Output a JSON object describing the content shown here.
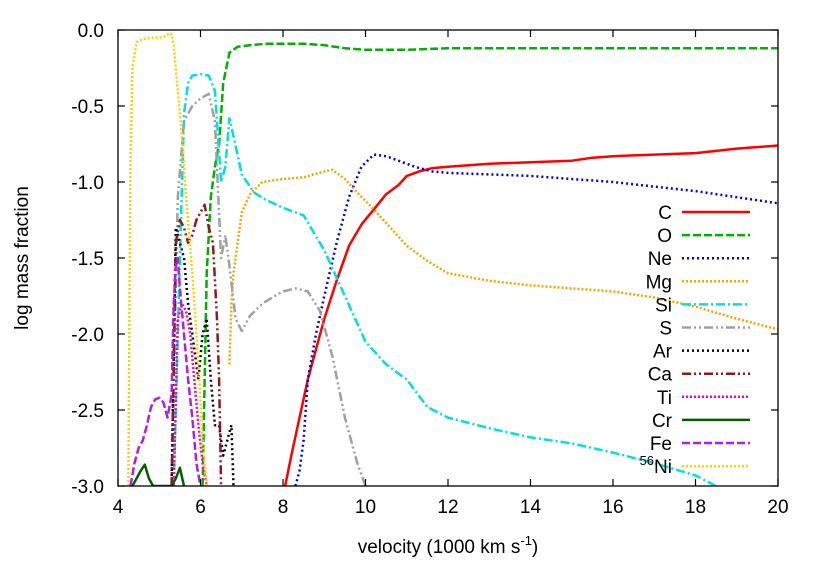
{
  "chart_data": {
    "type": "line",
    "title": "",
    "xlabel": "velocity (1000 km s",
    "xlabel_sup": "-1",
    "xlabel_close": ")",
    "ylabel": "log mass fraction",
    "xlim": [
      4,
      20
    ],
    "ylim": [
      -3.0,
      0.0
    ],
    "x_ticks": [
      4,
      6,
      8,
      10,
      12,
      14,
      16,
      18,
      20
    ],
    "x_tick_labels": [
      "4",
      "6",
      "8",
      "10",
      "12",
      "14",
      "16",
      "18",
      "20"
    ],
    "y_ticks": [
      0.0,
      -0.5,
      -1.0,
      -1.5,
      -2.0,
      -2.5,
      -3.0
    ],
    "y_tick_labels": [
      "0.0",
      "-0.5",
      "-1.0",
      "-1.5",
      "-2.0",
      "-2.5",
      "-3.0"
    ],
    "grid": false,
    "legend_position": "right",
    "series": [
      {
        "name": "C",
        "color": "#ff0000",
        "dash": "solid",
        "width": 2.5,
        "x": [
          8.05,
          8.2,
          8.4,
          8.6,
          8.8,
          9.0,
          9.3,
          9.6,
          9.9,
          10.2,
          10.5,
          10.8,
          11.0,
          11.3,
          11.6,
          12.0,
          12.5,
          13.0,
          14.0,
          15.0,
          15.5,
          16.0,
          17.0,
          18.0,
          19.0,
          20.0
        ],
        "y": [
          -3.0,
          -2.8,
          -2.55,
          -2.3,
          -2.1,
          -1.9,
          -1.65,
          -1.42,
          -1.28,
          -1.18,
          -1.08,
          -1.02,
          -0.96,
          -0.93,
          -0.91,
          -0.9,
          -0.89,
          -0.88,
          -0.87,
          -0.86,
          -0.84,
          -0.83,
          -0.82,
          -0.81,
          -0.78,
          -0.76
        ]
      },
      {
        "name": "O",
        "color": "#00b000",
        "dash": "8,3",
        "width": 2.5,
        "x": [
          6.05,
          6.15,
          6.25,
          6.35,
          6.45,
          6.55,
          6.7,
          6.9,
          7.2,
          7.6,
          8.0,
          8.5,
          9.0,
          9.5,
          10.0,
          11.0,
          12.0,
          13.0,
          14.0,
          15.0,
          16.0,
          17.0,
          18.0,
          19.0,
          20.0
        ],
        "y": [
          -3.0,
          -1.6,
          -1.1,
          -0.9,
          -0.75,
          -0.35,
          -0.15,
          -0.11,
          -0.1,
          -0.09,
          -0.09,
          -0.09,
          -0.1,
          -0.12,
          -0.13,
          -0.13,
          -0.12,
          -0.12,
          -0.12,
          -0.12,
          -0.12,
          -0.12,
          -0.12,
          -0.12,
          -0.12
        ]
      },
      {
        "name": "Ne",
        "color": "#0000dd",
        "dash": "2,3",
        "width": 2.5,
        "x": [
          8.3,
          8.4,
          8.5,
          8.6,
          8.8,
          9.0,
          9.3,
          9.6,
          9.9,
          10.2,
          10.5,
          10.8,
          11.2,
          11.6,
          12.0,
          13.0,
          14.0,
          15.0,
          16.0,
          17.0,
          18.0,
          19.0,
          20.0
        ],
        "y": [
          -3.0,
          -2.9,
          -2.7,
          -2.3,
          -2.0,
          -1.75,
          -1.4,
          -1.1,
          -0.9,
          -0.82,
          -0.83,
          -0.86,
          -0.9,
          -0.93,
          -0.94,
          -0.95,
          -0.96,
          -0.98,
          -1.0,
          -1.03,
          -1.06,
          -1.1,
          -1.14
        ]
      },
      {
        "name": "Mg",
        "color": "#f0a800",
        "dash": "2,2",
        "width": 2.5,
        "x": [
          6.7,
          6.75,
          6.8,
          6.9,
          7.0,
          7.2,
          7.5,
          8.0,
          8.5,
          9.0,
          9.2,
          9.5,
          9.8,
          10.2,
          10.6,
          11.0,
          11.5,
          12.0,
          13.0,
          14.0,
          15.0,
          16.0,
          17.0,
          18.0,
          19.0,
          20.0
        ],
        "y": [
          -2.2,
          -1.8,
          -1.6,
          -1.4,
          -1.2,
          -1.08,
          -1.0,
          -0.98,
          -0.97,
          -0.93,
          -0.92,
          -0.98,
          -1.07,
          -1.18,
          -1.3,
          -1.42,
          -1.52,
          -1.6,
          -1.65,
          -1.68,
          -1.7,
          -1.72,
          -1.76,
          -1.82,
          -1.9,
          -1.97
        ]
      },
      {
        "name": "Si",
        "color": "#00e0e0",
        "dash": "9,3,2,3",
        "width": 2.5,
        "x": [
          5.35,
          5.5,
          5.6,
          5.7,
          5.8,
          6.0,
          6.2,
          6.35,
          6.5,
          6.6,
          6.7,
          6.8,
          7.0,
          7.3,
          7.6,
          8.0,
          8.5,
          9.0,
          9.5,
          10.0,
          10.5,
          11.0,
          11.5,
          12.0,
          13.0,
          14.0,
          15.0,
          16.0,
          17.0,
          18.0,
          18.5
        ],
        "y": [
          -3.0,
          -1.5,
          -0.55,
          -0.35,
          -0.3,
          -0.29,
          -0.3,
          -0.4,
          -1.0,
          -0.9,
          -0.58,
          -0.7,
          -0.95,
          -1.07,
          -1.12,
          -1.17,
          -1.22,
          -1.45,
          -1.75,
          -2.05,
          -2.2,
          -2.3,
          -2.48,
          -2.55,
          -2.62,
          -2.68,
          -2.72,
          -2.78,
          -2.85,
          -2.93,
          -3.0
        ]
      },
      {
        "name": "S",
        "color": "#a0a0a0",
        "dash": "9,3,2,3,2,3",
        "width": 2.5,
        "x": [
          5.3,
          5.45,
          5.6,
          5.8,
          6.0,
          6.2,
          6.35,
          6.5,
          6.6,
          6.7,
          6.85,
          7.0,
          7.2,
          7.5,
          7.8,
          8.0,
          8.3,
          8.6,
          8.9,
          9.2,
          9.5,
          9.8,
          10.0
        ],
        "y": [
          -3.0,
          -1.1,
          -0.6,
          -0.5,
          -0.45,
          -0.42,
          -0.6,
          -1.5,
          -1.35,
          -1.55,
          -1.9,
          -1.98,
          -1.88,
          -1.8,
          -1.75,
          -1.72,
          -1.7,
          -1.72,
          -1.85,
          -2.15,
          -2.55,
          -2.85,
          -3.0
        ]
      },
      {
        "name": "Ar",
        "color": "#000000",
        "dash": "2,3",
        "width": 2.5,
        "x": [
          5.3,
          5.4,
          5.5,
          5.6,
          5.7,
          5.8,
          5.95,
          6.05,
          6.15,
          6.25,
          6.35,
          6.45,
          6.55,
          6.65,
          6.75,
          6.8
        ],
        "y": [
          -3.0,
          -1.3,
          -1.4,
          -1.5,
          -1.8,
          -2.0,
          -2.3,
          -2.0,
          -1.9,
          -2.3,
          -2.6,
          -2.6,
          -2.8,
          -2.7,
          -2.6,
          -3.0
        ]
      },
      {
        "name": "Ca",
        "color": "#8b1a1a",
        "dash": "9,3,2,3,2,3",
        "width": 2.5,
        "x": [
          5.3,
          5.4,
          5.5,
          5.6,
          5.7,
          5.8,
          5.9,
          6.0,
          6.1,
          6.2,
          6.3,
          6.4,
          6.45,
          6.5
        ],
        "y": [
          -3.0,
          -1.4,
          -1.25,
          -1.3,
          -1.4,
          -1.35,
          -1.25,
          -1.2,
          -1.15,
          -1.3,
          -1.4,
          -1.9,
          -2.3,
          -3.0
        ]
      },
      {
        "name": "Ti",
        "color": "#ff00bb",
        "dash": "2,2",
        "width": 2.5,
        "x": [
          5.35,
          5.45,
          5.55,
          5.65,
          5.75,
          5.85,
          5.95,
          6.05,
          6.15
        ],
        "y": [
          -3.0,
          -1.9,
          -1.8,
          -1.85,
          -2.0,
          -2.3,
          -2.6,
          -2.85,
          -3.0
        ]
      },
      {
        "name": "Cr",
        "color": "#006000",
        "dash": "solid",
        "width": 2.5,
        "x": [
          4.35,
          4.45,
          4.55,
          4.65,
          4.75,
          4.85,
          5.3,
          5.4,
          5.5,
          5.6
        ],
        "y": [
          -3.0,
          -2.95,
          -2.9,
          -2.86,
          -2.95,
          -3.0,
          -3.0,
          -2.95,
          -2.88,
          -3.0
        ]
      },
      {
        "name": "Fe",
        "color": "#b020e0",
        "dash": "8,3",
        "width": 2.5,
        "x": [
          4.3,
          4.4,
          4.5,
          4.6,
          4.7,
          4.8,
          4.9,
          5.0,
          5.1,
          5.2,
          5.3,
          5.35,
          5.4,
          5.45,
          5.5,
          5.6,
          5.7,
          5.8,
          5.9,
          6.0
        ],
        "y": [
          -3.0,
          -2.85,
          -2.75,
          -2.7,
          -2.6,
          -2.48,
          -2.43,
          -2.42,
          -2.45,
          -2.55,
          -2.4,
          -1.8,
          -1.55,
          -1.5,
          -1.7,
          -2.0,
          -2.3,
          -2.55,
          -2.85,
          -3.0
        ]
      },
      {
        "name": "56Ni",
        "name_sup": "56",
        "name_base": "Ni",
        "color": "#ffd000",
        "dash": "2,2",
        "width": 2.5,
        "x": [
          4.25,
          4.3,
          4.35,
          4.45,
          4.6,
          4.8,
          5.0,
          5.15,
          5.25,
          5.3,
          5.35,
          5.45,
          5.55,
          5.65,
          5.8,
          5.95,
          6.05,
          6.15
        ],
        "y": [
          -3.0,
          -0.9,
          -0.25,
          -0.08,
          -0.06,
          -0.05,
          -0.05,
          -0.04,
          -0.02,
          -0.03,
          -0.1,
          -0.4,
          -0.7,
          -1.1,
          -1.6,
          -2.2,
          -2.7,
          -3.0
        ]
      }
    ]
  }
}
